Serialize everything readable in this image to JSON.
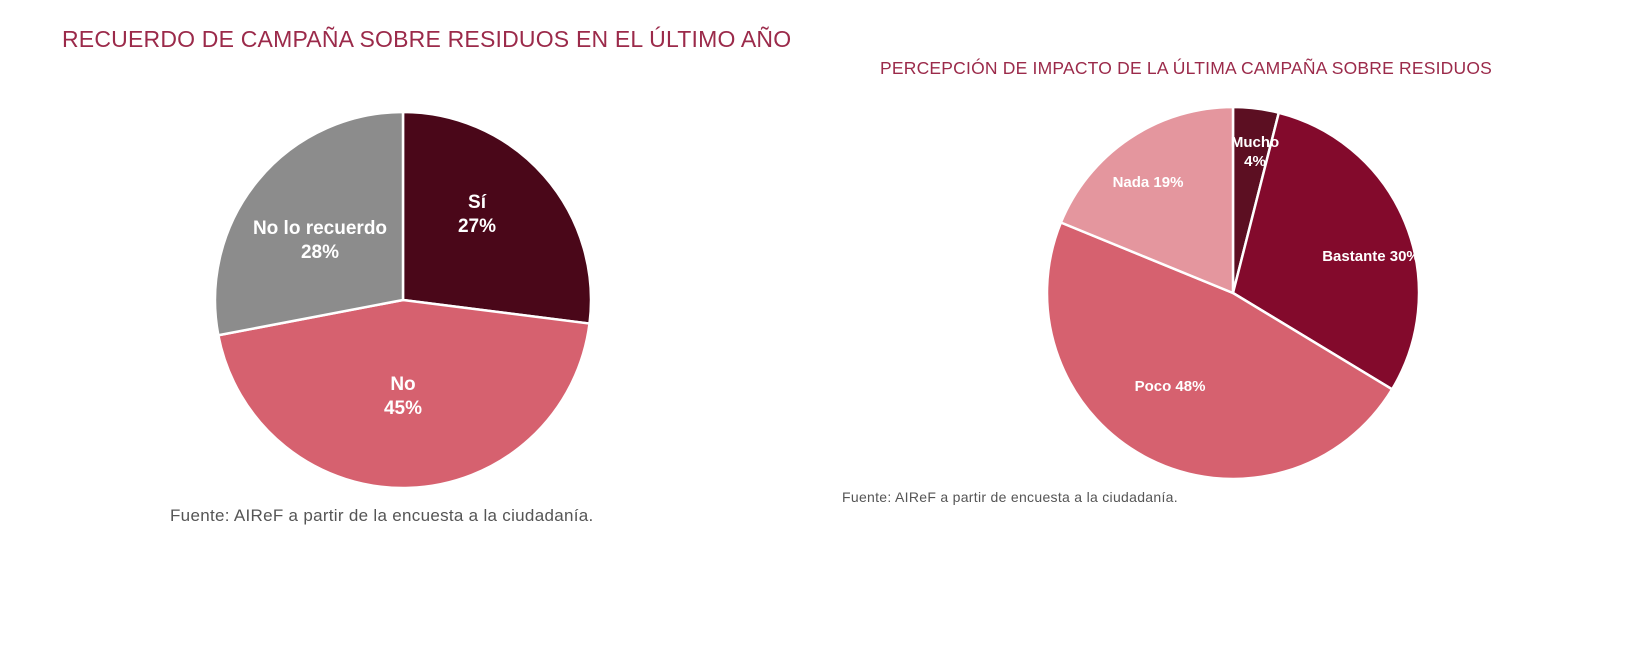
{
  "chart_data": [
    {
      "type": "pie",
      "title": "RECUERDO DE CAMPAÑA SOBRE RESIDUOS EN EL ÚLTIMO AÑO",
      "source": "Fuente: AIReF a partir de la encuesta a la ciudadanía.",
      "slices": [
        {
          "label": "Sí",
          "value": 27,
          "value_label": "27%",
          "color": "#4a0719"
        },
        {
          "label": "No",
          "value": 45,
          "value_label": "45%",
          "color": "#d6616f"
        },
        {
          "label": "No lo recuerdo",
          "value": 28,
          "value_label": "28%",
          "color": "#8c8c8c"
        }
      ]
    },
    {
      "type": "pie",
      "title": "PERCEPCIÓN DE IMPACTO DE LA ÚLTIMA CAMPAÑA SOBRE RESIDUOS",
      "source": "Fuente: AIReF a partir de encuesta a la ciudadanía.",
      "slices": [
        {
          "label": "Mucho",
          "value": 4,
          "value_label": "4%",
          "color": "#5c0f22"
        },
        {
          "label": "Bastante",
          "value": 30,
          "value_label": "30%",
          "color": "#830a2c"
        },
        {
          "label": "Poco",
          "value": 48,
          "value_label": "48%",
          "color": "#d6616f"
        },
        {
          "label": "Nada",
          "value": 19,
          "value_label": "19%",
          "color": "#e4969e"
        }
      ]
    }
  ]
}
